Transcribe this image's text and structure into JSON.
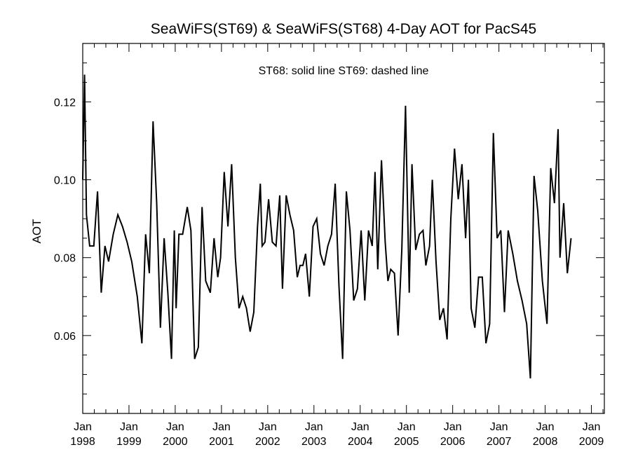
{
  "chart_data": {
    "type": "line",
    "title": "SeaWiFS(ST69) & SeaWiFS(ST68) 4-Day AOT for PacS45",
    "annotation": "ST68: solid line   ST69: dashed line",
    "xlabel": "",
    "ylabel": "AOT",
    "xlim": [
      1998.0,
      2009.28
    ],
    "ylim": [
      0.04,
      0.135
    ],
    "grid": false,
    "y_ticks": [
      "0.06",
      "0.08",
      "0.10",
      "0.12"
    ],
    "x_ticks": [
      {
        "month": "Jan",
        "year": "1998"
      },
      {
        "month": "Jan",
        "year": "1999"
      },
      {
        "month": "Jan",
        "year": "2000"
      },
      {
        "month": "Jan",
        "year": "2001"
      },
      {
        "month": "Jan",
        "year": "2002"
      },
      {
        "month": "Jan",
        "year": "2003"
      },
      {
        "month": "Jan",
        "year": "2004"
      },
      {
        "month": "Jan",
        "year": "2005"
      },
      {
        "month": "Jan",
        "year": "2006"
      },
      {
        "month": "Jan",
        "year": "2007"
      },
      {
        "month": "Jan",
        "year": "2008"
      },
      {
        "month": "Jan",
        "year": "2009"
      }
    ],
    "series": [
      {
        "name": "ST68",
        "style": "solid",
        "color": "#000000",
        "points": [
          [
            1998.0,
            0.1
          ],
          [
            1998.04,
            0.127
          ],
          [
            1998.08,
            0.091
          ],
          [
            1998.15,
            0.083
          ],
          [
            1998.24,
            0.083
          ],
          [
            1998.32,
            0.097
          ],
          [
            1998.4,
            0.071
          ],
          [
            1998.48,
            0.083
          ],
          [
            1998.56,
            0.079
          ],
          [
            1998.66,
            0.086
          ],
          [
            1998.76,
            0.091
          ],
          [
            1998.86,
            0.088
          ],
          [
            1998.96,
            0.084
          ],
          [
            1999.06,
            0.079
          ],
          [
            1999.18,
            0.07
          ],
          [
            1999.28,
            0.058
          ],
          [
            1999.36,
            0.086
          ],
          [
            1999.44,
            0.076
          ],
          [
            1999.52,
            0.115
          ],
          [
            1999.6,
            0.094
          ],
          [
            1999.68,
            0.062
          ],
          [
            1999.76,
            0.085
          ],
          [
            1999.84,
            0.071
          ],
          [
            1999.92,
            0.054
          ],
          [
            1999.98,
            0.087
          ],
          [
            2000.02,
            0.067
          ],
          [
            2000.08,
            0.086
          ],
          [
            2000.16,
            0.086
          ],
          [
            2000.26,
            0.093
          ],
          [
            2000.34,
            0.087
          ],
          [
            2000.42,
            0.054
          ],
          [
            2000.5,
            0.057
          ],
          [
            2000.58,
            0.093
          ],
          [
            2000.66,
            0.074
          ],
          [
            2000.76,
            0.071
          ],
          [
            2000.84,
            0.085
          ],
          [
            2000.92,
            0.075
          ],
          [
            2000.98,
            0.08
          ],
          [
            2001.06,
            0.102
          ],
          [
            2001.14,
            0.088
          ],
          [
            2001.22,
            0.104
          ],
          [
            2001.3,
            0.08
          ],
          [
            2001.38,
            0.067
          ],
          [
            2001.46,
            0.07
          ],
          [
            2001.54,
            0.067
          ],
          [
            2001.62,
            0.061
          ],
          [
            2001.7,
            0.066
          ],
          [
            2001.78,
            0.088
          ],
          [
            2001.84,
            0.099
          ],
          [
            2001.88,
            0.083
          ],
          [
            2001.94,
            0.084
          ],
          [
            2002.02,
            0.095
          ],
          [
            2002.1,
            0.084
          ],
          [
            2002.18,
            0.083
          ],
          [
            2002.26,
            0.096
          ],
          [
            2002.32,
            0.072
          ],
          [
            2002.4,
            0.096
          ],
          [
            2002.48,
            0.091
          ],
          [
            2002.56,
            0.087
          ],
          [
            2002.64,
            0.075
          ],
          [
            2002.7,
            0.078
          ],
          [
            2002.76,
            0.078
          ],
          [
            2002.82,
            0.081
          ],
          [
            2002.9,
            0.07
          ],
          [
            2002.98,
            0.088
          ],
          [
            2003.06,
            0.09
          ],
          [
            2003.14,
            0.081
          ],
          [
            2003.22,
            0.078
          ],
          [
            2003.3,
            0.083
          ],
          [
            2003.38,
            0.086
          ],
          [
            2003.46,
            0.099
          ],
          [
            2003.54,
            0.073
          ],
          [
            2003.62,
            0.054
          ],
          [
            2003.7,
            0.097
          ],
          [
            2003.78,
            0.087
          ],
          [
            2003.86,
            0.069
          ],
          [
            2003.94,
            0.072
          ],
          [
            2004.02,
            0.087
          ],
          [
            2004.1,
            0.069
          ],
          [
            2004.18,
            0.087
          ],
          [
            2004.26,
            0.083
          ],
          [
            2004.32,
            0.102
          ],
          [
            2004.38,
            0.077
          ],
          [
            2004.46,
            0.105
          ],
          [
            2004.54,
            0.084
          ],
          [
            2004.6,
            0.074
          ],
          [
            2004.66,
            0.077
          ],
          [
            2004.74,
            0.076
          ],
          [
            2004.82,
            0.06
          ],
          [
            2004.9,
            0.082
          ],
          [
            2004.98,
            0.119
          ],
          [
            2005.06,
            0.071
          ],
          [
            2005.12,
            0.104
          ],
          [
            2005.2,
            0.082
          ],
          [
            2005.28,
            0.086
          ],
          [
            2005.36,
            0.087
          ],
          [
            2005.42,
            0.078
          ],
          [
            2005.5,
            0.083
          ],
          [
            2005.56,
            0.1
          ],
          [
            2005.64,
            0.079
          ],
          [
            2005.72,
            0.064
          ],
          [
            2005.8,
            0.067
          ],
          [
            2005.88,
            0.059
          ],
          [
            2005.96,
            0.09
          ],
          [
            2006.04,
            0.108
          ],
          [
            2006.12,
            0.095
          ],
          [
            2006.2,
            0.104
          ],
          [
            2006.28,
            0.085
          ],
          [
            2006.34,
            0.1
          ],
          [
            2006.4,
            0.067
          ],
          [
            2006.48,
            0.062
          ],
          [
            2006.56,
            0.075
          ],
          [
            2006.64,
            0.075
          ],
          [
            2006.72,
            0.058
          ],
          [
            2006.8,
            0.063
          ],
          [
            2006.88,
            0.112
          ],
          [
            2006.96,
            0.085
          ],
          [
            2007.04,
            0.087
          ],
          [
            2007.12,
            0.066
          ],
          [
            2007.2,
            0.087
          ],
          [
            2007.3,
            0.081
          ],
          [
            2007.4,
            0.074
          ],
          [
            2007.5,
            0.069
          ],
          [
            2007.6,
            0.063
          ],
          [
            2007.68,
            0.049
          ],
          [
            2007.76,
            0.101
          ],
          [
            2007.84,
            0.092
          ],
          [
            2007.94,
            0.074
          ],
          [
            2008.04,
            0.063
          ],
          [
            2008.12,
            0.103
          ],
          [
            2008.2,
            0.094
          ],
          [
            2008.28,
            0.113
          ],
          [
            2008.32,
            0.08
          ],
          [
            2008.4,
            0.094
          ],
          [
            2008.48,
            0.076
          ],
          [
            2008.56,
            0.085
          ]
        ]
      }
    ]
  }
}
